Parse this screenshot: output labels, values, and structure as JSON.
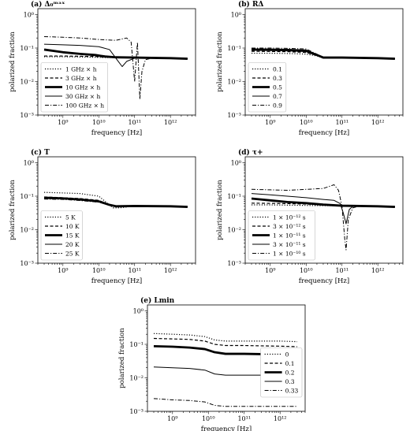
{
  "chart_data": [
    {
      "id": "a",
      "type": "line",
      "title": "(a) Δ₀ᵐᵃˣ",
      "xlabel": "frequency [Hz]",
      "ylabel": "polarized fraction",
      "xscale": "log",
      "yscale": "log",
      "xlim": [
        200000000.0,
        5000000000000.0
      ],
      "ylim": [
        0.001,
        1.5
      ],
      "xticks": [
        "10⁹",
        "10¹⁰",
        "10¹¹",
        "10¹²"
      ],
      "yticks": [
        "10⁻³",
        "10⁻²",
        "10⁻¹",
        "10⁰"
      ],
      "legend_position": "lower-left",
      "series": [
        {
          "name": "1 GHz × h",
          "style": "dotted",
          "x": [
            300000000.0,
            1000000000.0,
            3000000000.0,
            8000000000.0,
            13000000000.0,
            30000000000.0,
            100000000000.0,
            300000000000.0,
            1000000000000.0,
            3000000000000.0
          ],
          "y": [
            0.055,
            0.055,
            0.054,
            0.053,
            0.052,
            0.052,
            0.052,
            0.051,
            0.05,
            0.048
          ]
        },
        {
          "name": "3 GHz × h",
          "style": "dashed",
          "x": [
            300000000.0,
            1000000000.0,
            3000000000.0,
            8000000000.0,
            13000000000.0,
            30000000000.0,
            100000000000.0,
            300000000000.0,
            1000000000000.0,
            3000000000000.0
          ],
          "y": [
            0.058,
            0.058,
            0.057,
            0.056,
            0.054,
            0.052,
            0.052,
            0.051,
            0.05,
            0.048
          ]
        },
        {
          "name": "10 GHz × h",
          "style": "thick",
          "x": [
            300000000.0,
            1000000000.0,
            3000000000.0,
            8000000000.0,
            15000000000.0,
            30000000000.0,
            100000000000.0,
            300000000000.0,
            1000000000000.0,
            3000000000000.0
          ],
          "y": [
            0.09,
            0.075,
            0.067,
            0.062,
            0.056,
            0.053,
            0.052,
            0.051,
            0.05,
            0.048
          ]
        },
        {
          "name": "30 GHz × h",
          "style": "solid",
          "x": [
            300000000.0,
            1000000000.0,
            3000000000.0,
            10000000000.0,
            20000000000.0,
            35000000000.0,
            45000000000.0,
            60000000000.0,
            100000000000.0,
            300000000000.0,
            1000000000000.0,
            3000000000000.0
          ],
          "y": [
            0.13,
            0.125,
            0.12,
            0.11,
            0.09,
            0.04,
            0.028,
            0.04,
            0.05,
            0.051,
            0.05,
            0.048
          ]
        },
        {
          "name": "100 GHz × h",
          "style": "dashdot",
          "x": [
            300000000.0,
            1000000000.0,
            3000000000.0,
            10000000000.0,
            30000000000.0,
            60000000000.0,
            80000000000.0,
            100000000000.0,
            120000000000.0,
            140000000000.0,
            160000000000.0,
            200000000000.0,
            300000000000.0,
            1000000000000.0,
            3000000000000.0
          ],
          "y": [
            0.22,
            0.21,
            0.2,
            0.18,
            0.17,
            0.2,
            0.15,
            0.01,
            0.15,
            0.003,
            0.02,
            0.045,
            0.05,
            0.05,
            0.048
          ]
        }
      ]
    },
    {
      "id": "b",
      "type": "line",
      "title": "(b) RΔ",
      "xlabel": "frequency [Hz]",
      "ylabel": "polarized fraction",
      "xscale": "log",
      "yscale": "log",
      "xlim": [
        200000000.0,
        5000000000000.0
      ],
      "ylim": [
        0.001,
        1.5
      ],
      "xticks": [
        "10⁹",
        "10¹⁰",
        "10¹¹",
        "10¹²"
      ],
      "yticks": [
        "10⁻³",
        "10⁻²",
        "10⁻¹",
        "10⁰"
      ],
      "legend_position": "lower-left",
      "series": [
        {
          "name": "0.1",
          "style": "dotted",
          "x": [
            300000000.0,
            1000000000.0,
            3000000000.0,
            10000000000.0,
            20000000000.0,
            30000000000.0,
            100000000000.0,
            1000000000000.0,
            3000000000000.0
          ],
          "y": [
            0.07,
            0.07,
            0.069,
            0.066,
            0.058,
            0.052,
            0.052,
            0.05,
            0.048
          ]
        },
        {
          "name": "0.3",
          "style": "dashed",
          "x": [
            300000000.0,
            1000000000.0,
            3000000000.0,
            10000000000.0,
            20000000000.0,
            30000000000.0,
            100000000000.0,
            1000000000000.0,
            3000000000000.0
          ],
          "y": [
            0.08,
            0.079,
            0.078,
            0.074,
            0.06,
            0.052,
            0.052,
            0.05,
            0.048
          ]
        },
        {
          "name": "0.5",
          "style": "thick",
          "x": [
            300000000.0,
            1000000000.0,
            3000000000.0,
            10000000000.0,
            20000000000.0,
            30000000000.0,
            100000000000.0,
            1000000000000.0,
            3000000000000.0
          ],
          "y": [
            0.09,
            0.088,
            0.086,
            0.082,
            0.062,
            0.052,
            0.052,
            0.05,
            0.048
          ]
        },
        {
          "name": "0.7",
          "style": "solid",
          "x": [
            300000000.0,
            1000000000.0,
            3000000000.0,
            10000000000.0,
            20000000000.0,
            30000000000.0,
            100000000000.0,
            1000000000000.0,
            3000000000000.0
          ],
          "y": [
            0.095,
            0.094,
            0.092,
            0.088,
            0.064,
            0.052,
            0.052,
            0.05,
            0.048
          ]
        },
        {
          "name": "0.9",
          "style": "dashdot",
          "x": [
            300000000.0,
            1000000000.0,
            3000000000.0,
            10000000000.0,
            20000000000.0,
            30000000000.0,
            100000000000.0,
            1000000000000.0,
            3000000000000.0
          ],
          "y": [
            0.1,
            0.1,
            0.098,
            0.094,
            0.066,
            0.052,
            0.052,
            0.05,
            0.048
          ]
        }
      ]
    },
    {
      "id": "c",
      "type": "line",
      "title": "(c) T",
      "xlabel": "frequency [Hz]",
      "ylabel": "polarized fraction",
      "xscale": "log",
      "yscale": "log",
      "xlim": [
        200000000.0,
        5000000000000.0
      ],
      "ylim": [
        0.001,
        1.5
      ],
      "xticks": [
        "10⁹",
        "10¹⁰",
        "10¹¹",
        "10¹²"
      ],
      "yticks": [
        "10⁻³",
        "10⁻²",
        "10⁻¹",
        "10⁰"
      ],
      "legend_position": "lower-left",
      "series": [
        {
          "name": "5 K",
          "style": "dotted",
          "x": [
            300000000.0,
            1000000000.0,
            3000000000.0,
            10000000000.0,
            15000000000.0,
            25000000000.0,
            40000000000.0,
            100000000000.0,
            1000000000000.0,
            3000000000000.0
          ],
          "y": [
            0.13,
            0.125,
            0.12,
            0.1,
            0.07,
            0.045,
            0.045,
            0.051,
            0.05,
            0.048
          ]
        },
        {
          "name": "10 K",
          "style": "dashed",
          "x": [
            300000000.0,
            1000000000.0,
            3000000000.0,
            10000000000.0,
            20000000000.0,
            30000000000.0,
            100000000000.0,
            1000000000000.0,
            3000000000000.0
          ],
          "y": [
            0.095,
            0.09,
            0.085,
            0.075,
            0.055,
            0.049,
            0.051,
            0.05,
            0.048
          ]
        },
        {
          "name": "15 K",
          "style": "thick",
          "x": [
            300000000.0,
            1000000000.0,
            3000000000.0,
            10000000000.0,
            20000000000.0,
            30000000000.0,
            100000000000.0,
            1000000000000.0,
            3000000000000.0
          ],
          "y": [
            0.09,
            0.086,
            0.08,
            0.07,
            0.055,
            0.05,
            0.051,
            0.05,
            0.048
          ]
        },
        {
          "name": "20 K",
          "style": "solid",
          "x": [
            300000000.0,
            1000000000.0,
            3000000000.0,
            10000000000.0,
            20000000000.0,
            30000000000.0,
            100000000000.0,
            1000000000000.0,
            3000000000000.0
          ],
          "y": [
            0.085,
            0.082,
            0.076,
            0.068,
            0.054,
            0.051,
            0.051,
            0.05,
            0.048
          ]
        },
        {
          "name": "25 K",
          "style": "dashdot",
          "x": [
            300000000.0,
            1000000000.0,
            3000000000.0,
            10000000000.0,
            20000000000.0,
            30000000000.0,
            100000000000.0,
            1000000000000.0,
            3000000000000.0
          ],
          "y": [
            0.082,
            0.08,
            0.074,
            0.066,
            0.054,
            0.051,
            0.051,
            0.05,
            0.048
          ]
        }
      ]
    },
    {
      "id": "d",
      "type": "line",
      "title": "(d) τ+",
      "xlabel": "frequency [Hz]",
      "ylabel": "polarized fraction",
      "xscale": "log",
      "yscale": "log",
      "xlim": [
        200000000.0,
        5000000000000.0
      ],
      "ylim": [
        0.001,
        1.5
      ],
      "xticks": [
        "10⁹",
        "10¹⁰",
        "10¹¹",
        "10¹²"
      ],
      "yticks": [
        "10⁻³",
        "10⁻²",
        "10⁻¹",
        "10⁰"
      ],
      "legend_position": "lower-left",
      "series": [
        {
          "name": "1 × 10⁻¹² s",
          "style": "dotted",
          "x": [
            300000000.0,
            1000000000.0,
            3000000000.0,
            10000000000.0,
            30000000000.0,
            100000000000.0,
            1000000000000.0,
            3000000000000.0
          ],
          "y": [
            0.055,
            0.055,
            0.054,
            0.053,
            0.052,
            0.052,
            0.05,
            0.048
          ]
        },
        {
          "name": "3 × 10⁻¹² s",
          "style": "dashed",
          "x": [
            300000000.0,
            1000000000.0,
            3000000000.0,
            10000000000.0,
            30000000000.0,
            100000000000.0,
            1000000000000.0,
            3000000000000.0
          ],
          "y": [
            0.062,
            0.061,
            0.06,
            0.058,
            0.055,
            0.052,
            0.05,
            0.048
          ]
        },
        {
          "name": "1 × 10⁻¹¹ s",
          "style": "thick",
          "x": [
            300000000.0,
            1000000000.0,
            3000000000.0,
            10000000000.0,
            30000000000.0,
            100000000000.0,
            1000000000000.0,
            3000000000000.0
          ],
          "y": [
            0.085,
            0.075,
            0.067,
            0.062,
            0.056,
            0.052,
            0.05,
            0.048
          ]
        },
        {
          "name": "3 × 10⁻¹¹ s",
          "style": "solid",
          "x": [
            300000000.0,
            1000000000.0,
            3000000000.0,
            10000000000.0,
            30000000000.0,
            60000000000.0,
            90000000000.0,
            110000000000.0,
            130000000000.0,
            160000000000.0,
            200000000000.0,
            300000000000.0,
            1000000000000.0,
            3000000000000.0
          ],
          "y": [
            0.12,
            0.11,
            0.1,
            0.09,
            0.08,
            0.075,
            0.06,
            0.03,
            0.015,
            0.04,
            0.05,
            0.051,
            0.05,
            0.048
          ]
        },
        {
          "name": "1 × 10⁻¹⁰ s",
          "style": "dashdot",
          "x": [
            300000000.0,
            1000000000.0,
            3000000000.0,
            10000000000.0,
            30000000000.0,
            60000000000.0,
            80000000000.0,
            100000000000.0,
            120000000000.0,
            130000000000.0,
            150000000000.0,
            200000000000.0,
            300000000000.0,
            1000000000000.0,
            3000000000000.0
          ],
          "y": [
            0.16,
            0.155,
            0.15,
            0.16,
            0.17,
            0.22,
            0.15,
            0.05,
            0.005,
            0.0025,
            0.02,
            0.045,
            0.05,
            0.05,
            0.048
          ]
        }
      ]
    },
    {
      "id": "e",
      "type": "line",
      "title": "(e) Lmin",
      "xlabel": "frequency [Hz]",
      "ylabel": "polarized fraction",
      "xscale": "log",
      "yscale": "log",
      "xlim": [
        200000000.0,
        5000000000000.0
      ],
      "ylim": [
        0.001,
        1.5
      ],
      "xticks": [
        "10⁹",
        "10¹⁰",
        "10¹¹",
        "10¹²"
      ],
      "yticks": [
        "10⁻³",
        "10⁻²",
        "10⁻¹",
        "10⁰"
      ],
      "legend_position": "lower-right",
      "series": [
        {
          "name": "0",
          "style": "dotted",
          "x": [
            300000000.0,
            1000000000.0,
            3000000000.0,
            8000000000.0,
            15000000000.0,
            30000000000.0,
            100000000000.0,
            300000000000.0,
            1000000000000.0,
            3000000000000.0
          ],
          "y": [
            0.21,
            0.2,
            0.19,
            0.17,
            0.135,
            0.125,
            0.125,
            0.125,
            0.125,
            0.12
          ]
        },
        {
          "name": "0.1",
          "style": "dashed",
          "x": [
            300000000.0,
            1000000000.0,
            3000000000.0,
            8000000000.0,
            15000000000.0,
            30000000000.0,
            100000000000.0,
            300000000000.0,
            1000000000000.0,
            3000000000000.0
          ],
          "y": [
            0.15,
            0.145,
            0.14,
            0.125,
            0.1,
            0.092,
            0.092,
            0.09,
            0.088,
            0.085
          ]
        },
        {
          "name": "0.2",
          "style": "thick",
          "x": [
            300000000.0,
            1000000000.0,
            3000000000.0,
            8000000000.0,
            15000000000.0,
            30000000000.0,
            100000000000.0,
            300000000000.0,
            1000000000000.0,
            3000000000000.0
          ],
          "y": [
            0.088,
            0.085,
            0.08,
            0.072,
            0.058,
            0.052,
            0.052,
            0.051,
            0.05,
            0.048
          ]
        },
        {
          "name": "0.3",
          "style": "solid",
          "x": [
            300000000.0,
            1000000000.0,
            3000000000.0,
            8000000000.0,
            15000000000.0,
            30000000000.0,
            100000000000.0,
            300000000000.0,
            1000000000000.0,
            3000000000000.0
          ],
          "y": [
            0.021,
            0.02,
            0.019,
            0.017,
            0.013,
            0.012,
            0.012,
            0.012,
            0.0118,
            0.0115
          ]
        },
        {
          "name": "0.33",
          "style": "dashdot",
          "x": [
            300000000.0,
            1000000000.0,
            3000000000.0,
            8000000000.0,
            15000000000.0,
            30000000000.0,
            100000000000.0,
            300000000000.0,
            1000000000000.0,
            3000000000000.0
          ],
          "y": [
            0.0024,
            0.0022,
            0.0021,
            0.0019,
            0.0015,
            0.0014,
            0.0014,
            0.0014,
            0.0014,
            0.0014
          ]
        }
      ]
    }
  ]
}
